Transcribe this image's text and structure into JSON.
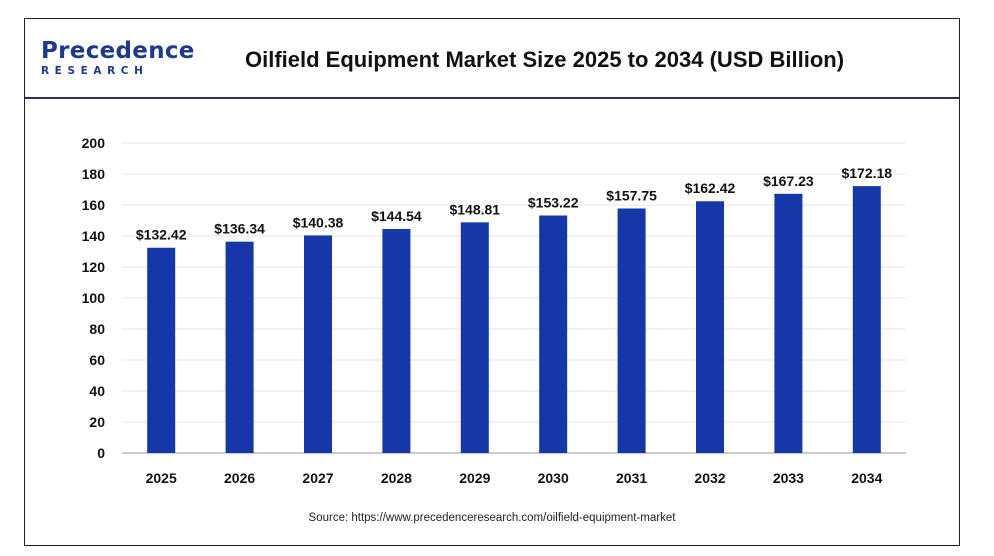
{
  "logo": {
    "line1": "Precedence",
    "line2": "RESEARCH"
  },
  "colors": {
    "bar": "#1537a8",
    "grid": "#e6e6e6",
    "axis": "#999999",
    "text": "#111111"
  },
  "chart_data": {
    "type": "bar",
    "title": "Oilfield Equipment Market Size 2025 to 2034 (USD Billion)",
    "xlabel": "",
    "ylabel": "",
    "categories": [
      "2025",
      "2026",
      "2027",
      "2028",
      "2029",
      "2030",
      "2031",
      "2032",
      "2033",
      "2034"
    ],
    "values": [
      132.42,
      136.34,
      140.38,
      144.54,
      148.81,
      153.22,
      157.75,
      162.42,
      167.23,
      172.18
    ],
    "data_labels": [
      "$132.42",
      "$136.34",
      "$140.38",
      "$144.54",
      "$148.81",
      "$153.22",
      "$157.75",
      "$162.42",
      "$167.23",
      "$172.18"
    ],
    "yticks": [
      0,
      20,
      40,
      60,
      80,
      100,
      120,
      140,
      160,
      180,
      200
    ],
    "ylim": [
      0,
      200
    ],
    "grid": true,
    "legend": "none"
  },
  "source": "Source: https://www.precedenceresearch.com/oilfield-equipment-market"
}
